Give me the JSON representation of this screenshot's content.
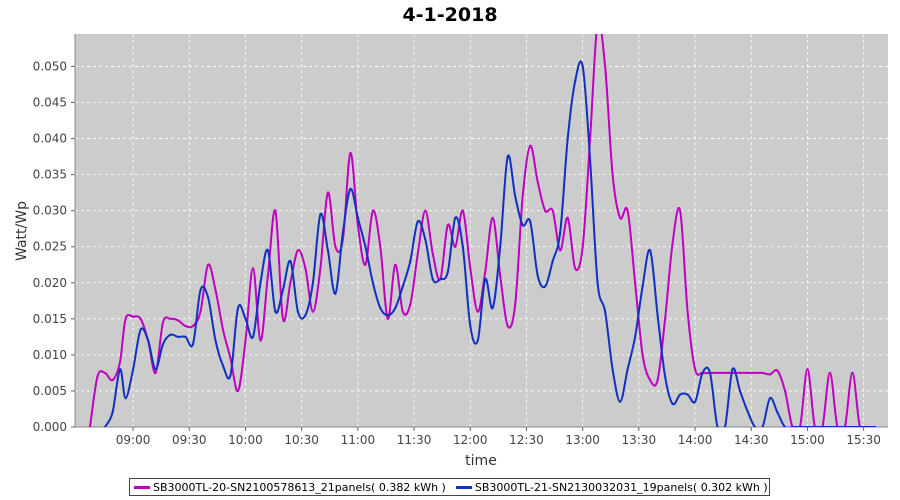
{
  "colors": {
    "plot_bg": "#cccccc",
    "grid": "#ffffff",
    "series_1": "#c000c0",
    "series_2": "#1030c0"
  },
  "chart_data": {
    "type": "line",
    "title": "4-1-2018",
    "xlabel": "time",
    "ylabel": "Watt/Wp",
    "xlim": [
      "08:29",
      "15:43"
    ],
    "ylim": [
      0.0,
      0.0545
    ],
    "x_ticks": [
      "09:00",
      "09:30",
      "10:00",
      "10:30",
      "11:00",
      "11:30",
      "12:00",
      "12:30",
      "13:00",
      "13:30",
      "14:00",
      "14:30",
      "15:00",
      "15:30"
    ],
    "y_ticks": [
      "0.000",
      "0.005",
      "0.010",
      "0.015",
      "0.020",
      "0.025",
      "0.030",
      "0.035",
      "0.040",
      "0.045",
      "0.050"
    ],
    "grid": true,
    "legend_position": "bottom",
    "series": [
      {
        "name": "SB3000TL-20-SN2100578613_21panels( 0.382 kWh )",
        "x": [
          "08:37",
          "08:41",
          "08:45",
          "08:49",
          "08:53",
          "08:56",
          "09:00",
          "09:04",
          "09:08",
          "09:12",
          "09:16",
          "09:20",
          "09:24",
          "09:28",
          "09:32",
          "09:36",
          "09:40",
          "09:44",
          "09:48",
          "09:52",
          "09:56",
          "10:00",
          "10:04",
          "10:08",
          "10:12",
          "10:16",
          "10:20",
          "10:24",
          "10:28",
          "10:32",
          "10:36",
          "10:40",
          "10:44",
          "10:48",
          "10:52",
          "10:56",
          "11:00",
          "11:04",
          "11:08",
          "11:12",
          "11:16",
          "11:20",
          "11:24",
          "11:28",
          "11:32",
          "11:36",
          "11:40",
          "11:44",
          "11:48",
          "11:52",
          "11:56",
          "12:00",
          "12:04",
          "12:08",
          "12:12",
          "12:16",
          "12:20",
          "12:24",
          "12:28",
          "12:32",
          "12:36",
          "12:40",
          "12:44",
          "12:48",
          "12:52",
          "12:56",
          "13:00",
          "13:04",
          "13:08",
          "13:12",
          "13:16",
          "13:20",
          "13:24",
          "13:28",
          "13:32",
          "13:36",
          "13:40",
          "13:44",
          "13:48",
          "13:52",
          "13:56",
          "14:00",
          "14:04",
          "14:08",
          "14:12",
          "14:16",
          "14:20",
          "14:24",
          "14:28",
          "14:32",
          "14:36",
          "14:40",
          "14:44",
          "14:48",
          "14:52",
          "14:56",
          "15:00",
          "15:04",
          "15:08",
          "15:12",
          "15:16",
          "15:20",
          "15:24",
          "15:28",
          "15:32",
          "15:36"
        ],
        "y": [
          0.0,
          0.007,
          0.0075,
          0.0065,
          0.009,
          0.015,
          0.0153,
          0.015,
          0.012,
          0.0075,
          0.0145,
          0.015,
          0.0148,
          0.014,
          0.014,
          0.016,
          0.0225,
          0.019,
          0.0135,
          0.0095,
          0.005,
          0.012,
          0.022,
          0.012,
          0.021,
          0.03,
          0.015,
          0.02,
          0.0245,
          0.022,
          0.016,
          0.022,
          0.0325,
          0.025,
          0.026,
          0.038,
          0.028,
          0.0225,
          0.03,
          0.025,
          0.015,
          0.0225,
          0.016,
          0.017,
          0.024,
          0.03,
          0.024,
          0.0205,
          0.028,
          0.025,
          0.03,
          0.022,
          0.016,
          0.0215,
          0.029,
          0.021,
          0.014,
          0.017,
          0.032,
          0.039,
          0.034,
          0.03,
          0.03,
          0.0245,
          0.029,
          0.022,
          0.025,
          0.04,
          0.056,
          0.05,
          0.035,
          0.029,
          0.03,
          0.02,
          0.01,
          0.0065,
          0.0065,
          0.015,
          0.0255,
          0.03,
          0.016,
          0.008,
          0.0075,
          0.0075,
          0.0075,
          0.0075,
          0.0075,
          0.0075,
          0.0075,
          0.0075,
          0.0075,
          0.0073,
          0.0078,
          0.005,
          0.0,
          0.0,
          0.008,
          0.0,
          0.0,
          0.0075,
          0.0,
          0.0,
          0.0075,
          0.0,
          0.0,
          0.0
        ]
      },
      {
        "name": "SB3000TL-21-SN2130032031_19panels( 0.302 kWh )",
        "x": [
          "08:45",
          "08:49",
          "08:53",
          "08:56",
          "09:00",
          "09:04",
          "09:08",
          "09:12",
          "09:16",
          "09:20",
          "09:24",
          "09:28",
          "09:32",
          "09:36",
          "09:40",
          "09:44",
          "09:48",
          "09:52",
          "09:56",
          "10:00",
          "10:04",
          "10:08",
          "10:12",
          "10:16",
          "10:20",
          "10:24",
          "10:28",
          "10:32",
          "10:36",
          "10:40",
          "10:44",
          "10:48",
          "10:52",
          "10:56",
          "11:00",
          "11:04",
          "11:08",
          "11:12",
          "11:16",
          "11:20",
          "11:24",
          "11:28",
          "11:32",
          "11:36",
          "11:40",
          "11:44",
          "11:48",
          "11:52",
          "11:56",
          "12:00",
          "12:04",
          "12:08",
          "12:12",
          "12:16",
          "12:20",
          "12:24",
          "12:28",
          "12:32",
          "12:36",
          "12:40",
          "12:44",
          "12:48",
          "12:52",
          "12:56",
          "13:00",
          "13:04",
          "13:08",
          "13:12",
          "13:16",
          "13:20",
          "13:24",
          "13:28",
          "13:32",
          "13:36",
          "13:40",
          "13:44",
          "13:48",
          "13:52",
          "13:56",
          "14:00",
          "14:04",
          "14:08",
          "14:12",
          "14:16",
          "14:20",
          "14:24",
          "14:28",
          "14:32",
          "14:36",
          "14:40",
          "14:44",
          "14:48",
          "14:52",
          "14:56",
          "15:00",
          "15:04",
          "15:08",
          "15:12",
          "15:16",
          "15:20",
          "15:24",
          "15:28",
          "15:32",
          "15:36"
        ],
        "y": [
          0.0,
          0.002,
          0.008,
          0.004,
          0.008,
          0.0135,
          0.012,
          0.008,
          0.0115,
          0.0128,
          0.0125,
          0.0125,
          0.0115,
          0.019,
          0.018,
          0.012,
          0.0085,
          0.0072,
          0.0165,
          0.015,
          0.0125,
          0.02,
          0.0245,
          0.016,
          0.019,
          0.023,
          0.016,
          0.0155,
          0.02,
          0.0295,
          0.0245,
          0.0185,
          0.027,
          0.033,
          0.029,
          0.025,
          0.02,
          0.0165,
          0.0155,
          0.0165,
          0.0195,
          0.023,
          0.0285,
          0.026,
          0.0205,
          0.0205,
          0.0215,
          0.029,
          0.025,
          0.014,
          0.012,
          0.0205,
          0.0165,
          0.025,
          0.0375,
          0.032,
          0.028,
          0.0285,
          0.021,
          0.0195,
          0.023,
          0.027,
          0.04,
          0.048,
          0.05,
          0.037,
          0.02,
          0.016,
          0.008,
          0.0035,
          0.008,
          0.0125,
          0.0195,
          0.0245,
          0.0155,
          0.007,
          0.0032,
          0.0045,
          0.0045,
          0.0035,
          0.0075,
          0.0075,
          0.0,
          0.0,
          0.008,
          0.005,
          0.0022,
          0.0,
          0.0,
          0.004,
          0.002,
          0.0,
          0.0,
          0.0,
          0.0,
          0.0,
          0.0,
          0.0,
          0.0,
          0.0,
          0.0,
          0.0,
          0.0,
          0.0
        ]
      }
    ]
  }
}
